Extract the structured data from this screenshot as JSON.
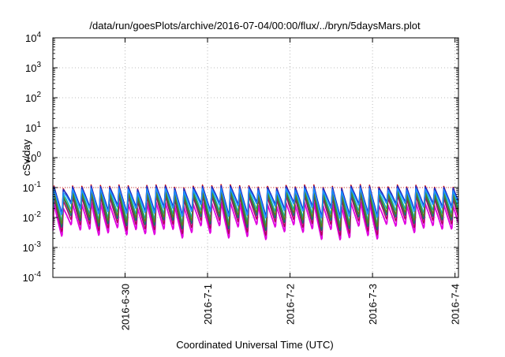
{
  "chart_data": {
    "type": "line",
    "title": "/data/run/goesPlots/archive/2016-07-04/00:00/flux/../bryn/5daysMars.plot",
    "xlabel": "Coordinated Universal Time (UTC)",
    "ylabel": "cSv/day",
    "y_scale": "log",
    "ylim": [
      0.0001,
      10000
    ],
    "xlim": [
      "2016-06-29T03:00",
      "2016-07-04T01:00"
    ],
    "x_ticks": [
      "2016-6-30",
      "2016-7-1",
      "2016-7-2",
      "2016-7-3",
      "2016-7-4"
    ],
    "y_ticks": [
      {
        "base": "10",
        "exp": "-4"
      },
      {
        "base": "10",
        "exp": "-3"
      },
      {
        "base": "10",
        "exp": "-2"
      },
      {
        "base": "10",
        "exp": "-1"
      },
      {
        "base": "10",
        "exp": "0"
      },
      {
        "base": "10",
        "exp": "1"
      },
      {
        "base": "10",
        "exp": "2"
      },
      {
        "base": "10",
        "exp": "3"
      },
      {
        "base": "10",
        "exp": "4"
      }
    ],
    "grid": true,
    "reference_line": {
      "y": 0.1,
      "color": "#d00000"
    },
    "cycle_hours": 2.7,
    "cycle_start": "2016-06-29T03:20",
    "series": [
      {
        "color": "#e000e0",
        "peak_range": [
          0.02,
          0.035
        ],
        "trough_range": [
          0.0015,
          0.006
        ]
      },
      {
        "color": "#b00060",
        "peak_range": [
          0.035,
          0.06
        ],
        "trough_range": [
          0.002,
          0.009
        ]
      },
      {
        "color": "#1a6e6e",
        "peak_range": [
          0.045,
          0.075
        ],
        "trough_range": [
          0.003,
          0.012
        ]
      },
      {
        "color": "#00bcbc",
        "peak_range": [
          0.06,
          0.09
        ],
        "trough_range": [
          0.005,
          0.02
        ]
      },
      {
        "color": "#5a7d1a",
        "peak_range": [
          0.05,
          0.08
        ],
        "trough_range": [
          0.004,
          0.015
        ]
      },
      {
        "color": "#d00000",
        "peak_range": [
          0.09,
          0.13
        ],
        "trough_range": [
          0.008,
          0.03
        ]
      },
      {
        "color": "#1a2dc8",
        "peak_range": [
          0.085,
          0.12
        ],
        "trough_range": [
          0.01,
          0.035
        ]
      },
      {
        "color": "#1e90ff",
        "peak_range": [
          0.07,
          0.1
        ],
        "trough_range": [
          0.008,
          0.03
        ]
      }
    ]
  }
}
